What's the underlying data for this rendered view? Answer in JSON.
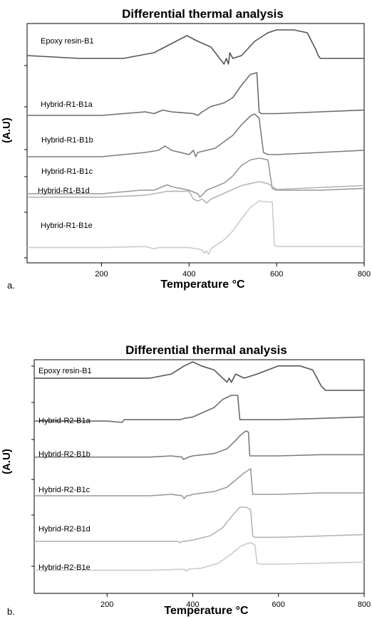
{
  "chart_data": [
    {
      "type": "line",
      "panel_label": "a.",
      "title": "Differential thermal analysis",
      "xlabel": "Temperature °C",
      "ylabel": "(A.U)",
      "xlim": [
        30,
        800
      ],
      "xticks": [
        200,
        400,
        600,
        800
      ],
      "ylim": [
        0,
        100
      ],
      "grid": false,
      "legend": "inline labels",
      "series": [
        {
          "name": "Epoxy resin-B1",
          "color": "#555555",
          "x": [
            30,
            150,
            250,
            320,
            370,
            395,
            420,
            450,
            470,
            480,
            485,
            490,
            493,
            500,
            520,
            550,
            580,
            600,
            640,
            670,
            690,
            695,
            700,
            720,
            800
          ],
          "y": [
            88,
            87,
            87,
            89,
            93,
            95,
            93,
            91,
            87,
            85,
            87,
            85,
            89,
            87,
            88,
            93,
            96,
            97,
            97,
            96,
            90,
            88,
            87,
            87,
            87
          ]
        },
        {
          "name": "Hybrid-R1-B1a",
          "color": "#6b6b6b",
          "x": [
            30,
            200,
            300,
            320,
            340,
            360,
            410,
            420,
            430,
            450,
            480,
            500,
            520,
            540,
            555,
            560,
            565,
            600,
            700,
            800
          ],
          "y": [
            68,
            68,
            70,
            69,
            71,
            70,
            69,
            68,
            70,
            73,
            75,
            78,
            85,
            91,
            92,
            70,
            69,
            69,
            70,
            71
          ]
        },
        {
          "name": "Hybrid-R1-B1b",
          "color": "#7d7d7d",
          "x": [
            30,
            200,
            300,
            330,
            345,
            360,
            400,
            410,
            415,
            420,
            440,
            460,
            500,
            520,
            540,
            550,
            560,
            570,
            580,
            590,
            600,
            700,
            800
          ],
          "y": [
            53,
            53,
            55,
            56,
            58,
            56,
            54,
            56,
            53,
            55,
            56,
            57,
            63,
            68,
            72,
            73,
            71,
            55,
            54,
            54,
            54,
            55,
            56
          ]
        },
        {
          "name": "Hybrid-R1-B1c",
          "color": "#999999",
          "x": [
            30,
            200,
            290,
            320,
            350,
            360,
            400,
            420,
            425,
            440,
            480,
            500,
            520,
            540,
            560,
            580,
            590,
            600,
            700,
            800
          ],
          "y": [
            38,
            38,
            40,
            40,
            43,
            42,
            40,
            38,
            36,
            40,
            44,
            48,
            54,
            57,
            58,
            57,
            41,
            40,
            40,
            41
          ]
        },
        {
          "name": "Hybrid-R1-B1d",
          "color": "#b5b5b5",
          "x": [
            30,
            200,
            300,
            350,
            400,
            410,
            420,
            430,
            440,
            450,
            480,
            500,
            520,
            540,
            560,
            580,
            600,
            700,
            800
          ],
          "y": [
            25,
            25,
            26,
            28,
            28,
            24,
            23,
            24,
            22,
            24,
            27,
            29,
            31,
            32,
            33,
            32,
            29,
            30,
            31
          ]
        },
        {
          "name": "Hybrid-R1-B1e",
          "color": "#cccccc",
          "x": [
            30,
            200,
            300,
            320,
            330,
            400,
            430,
            435,
            440,
            445,
            450,
            480,
            500,
            520,
            540,
            560,
            580,
            590,
            595,
            600,
            700,
            800
          ],
          "y": [
            7,
            7,
            8,
            6,
            7,
            7,
            5,
            2,
            4,
            1,
            6,
            14,
            22,
            33,
            43,
            49,
            48,
            48,
            9,
            8,
            8,
            8
          ]
        }
      ]
    },
    {
      "type": "line",
      "panel_label": "b.",
      "title": "Differential thermal analysis",
      "xlabel": "Temperature °C",
      "ylabel": "(A.U)",
      "xlim": [
        30,
        800
      ],
      "xticks": [
        200,
        400,
        600,
        800
      ],
      "ylim": [
        0,
        100
      ],
      "grid": false,
      "legend": "inline labels",
      "series": [
        {
          "name": "Epoxy resin-B1",
          "color": "#555555",
          "x": [
            30,
            200,
            300,
            350,
            380,
            400,
            420,
            450,
            470,
            480,
            485,
            490,
            500,
            520,
            550,
            600,
            650,
            680,
            690,
            700,
            710,
            800
          ],
          "y": [
            94,
            94,
            94,
            95,
            97,
            98,
            97,
            96,
            94,
            93,
            94,
            93,
            95,
            94,
            95,
            97,
            97,
            96,
            94,
            92,
            91,
            91
          ]
        },
        {
          "name": "Hybrid-R2-B1a",
          "color": "#6b6b6b",
          "x": [
            30,
            200,
            235,
            240,
            280,
            350,
            370,
            380,
            400,
            450,
            470,
            490,
            505,
            508,
            510,
            600,
            700,
            800
          ],
          "y": [
            72,
            72,
            71,
            73,
            73,
            73,
            73,
            74,
            75,
            82,
            88,
            91,
            91,
            80,
            73,
            73,
            74,
            75
          ]
        },
        {
          "name": "Hybrid-R2-B1b",
          "color": "#7d7d7d",
          "x": [
            30,
            200,
            300,
            350,
            375,
            378,
            385,
            390,
            400,
            450,
            480,
            500,
            510,
            520,
            525,
            530,
            533,
            600,
            700,
            800
          ],
          "y": [
            56,
            56,
            56,
            57,
            56,
            54,
            55,
            56,
            57,
            59,
            63,
            70,
            74,
            77,
            78,
            77,
            57,
            57,
            58,
            58
          ]
        },
        {
          "name": "Hybrid-R2-B1c",
          "color": "#999999",
          "x": [
            30,
            200,
            300,
            350,
            375,
            380,
            385,
            390,
            400,
            450,
            480,
            500,
            520,
            530,
            535,
            540,
            600,
            700,
            800
          ],
          "y": [
            42,
            42,
            42,
            43,
            42,
            40,
            42,
            42,
            43,
            45,
            48,
            53,
            58,
            60,
            61,
            43,
            43,
            44,
            44
          ]
        },
        {
          "name": "Hybrid-R2-B1d",
          "color": "#b5b5b5",
          "x": [
            30,
            200,
            300,
            365,
            370,
            375,
            380,
            400,
            440,
            470,
            490,
            510,
            525,
            535,
            540,
            545,
            600,
            700,
            800
          ],
          "y": [
            25,
            25,
            25,
            25,
            24,
            25,
            25,
            26,
            29,
            35,
            43,
            50,
            50,
            48,
            29,
            28,
            28,
            29,
            30
          ]
        },
        {
          "name": "Hybrid-R2-B1e",
          "color": "#cccccc",
          "x": [
            30,
            200,
            300,
            380,
            385,
            390,
            420,
            460,
            490,
            510,
            525,
            535,
            545,
            550,
            560,
            600,
            700,
            800
          ],
          "y": [
            6,
            6,
            6,
            7,
            5,
            7,
            8,
            13,
            22,
            29,
            32,
            33,
            31,
            13,
            12,
            12,
            13,
            14
          ]
        }
      ]
    }
  ]
}
